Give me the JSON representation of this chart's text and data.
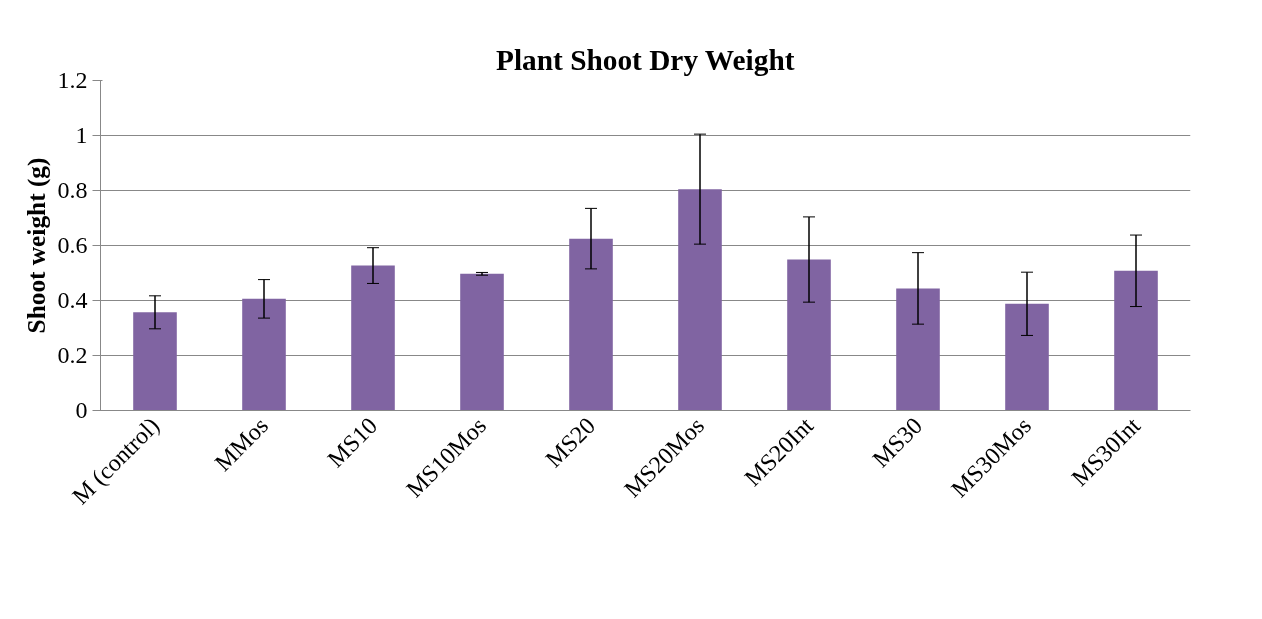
{
  "chart_data": {
    "type": "bar",
    "title": "Plant Shoot Dry Weight",
    "ylabel": "Shoot weight (g)",
    "categories": [
      "M (control)",
      "MMos",
      "MS10",
      "MS10Mos",
      "MS20",
      "MS20Mos",
      "MS20Int",
      "MS30",
      "MS30Mos",
      "MS30Int"
    ],
    "values": [
      0.357,
      0.406,
      0.527,
      0.497,
      0.625,
      0.805,
      0.549,
      0.444,
      0.388,
      0.508
    ],
    "errors": [
      0.06,
      0.07,
      0.065,
      0.005,
      0.11,
      0.2,
      0.155,
      0.13,
      0.115,
      0.13
    ],
    "color": "#8064a2",
    "ylim": [
      0,
      1.2
    ],
    "yticks": [
      0,
      0.2,
      0.4,
      0.6,
      0.8,
      1,
      1.2
    ],
    "grid": "y"
  }
}
